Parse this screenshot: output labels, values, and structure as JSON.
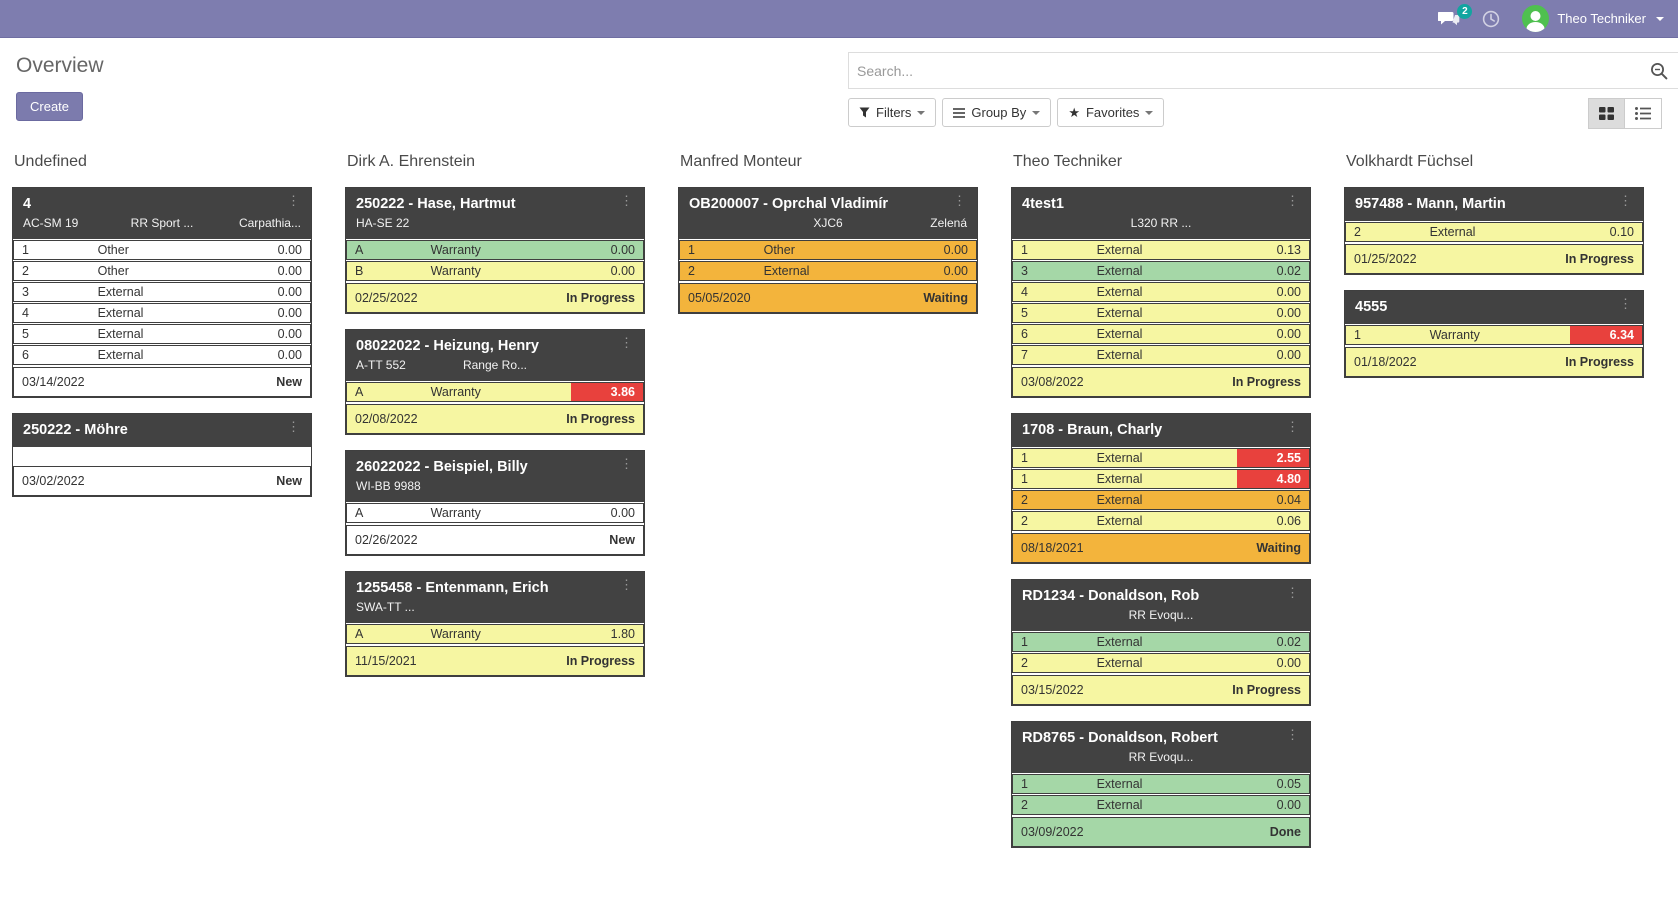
{
  "topbar": {
    "messages_badge": "2",
    "user_name": "Theo Techniker"
  },
  "header": {
    "title": "Overview",
    "create_label": "Create",
    "search_placeholder": "Search...",
    "filters_label": "Filters",
    "groupby_label": "Group By",
    "favorites_label": "Favorites"
  },
  "colors": {
    "accent": "#7C7BAD",
    "badge_teal": "#12A5A0",
    "card_header": "#424242",
    "white": "#FFFFFF",
    "yellow": "#F6F6A2",
    "green": "#A5D7A7",
    "orange": "#F3B43C",
    "red": "#E8413D"
  },
  "board": {
    "columns": [
      {
        "name": "Undefined",
        "cards": [
          {
            "title": "4",
            "subtitle": {
              "left": "AC-SM 19",
              "center": "RR Sport ...",
              "right": "Carpathia..."
            },
            "rows": [
              {
                "seq": "1",
                "type": "Other",
                "value": "0.00",
                "bg": "white"
              },
              {
                "seq": "2",
                "type": "Other",
                "value": "0.00",
                "bg": "white"
              },
              {
                "seq": "3",
                "type": "External",
                "value": "0.00",
                "bg": "white"
              },
              {
                "seq": "4",
                "type": "External",
                "value": "0.00",
                "bg": "white"
              },
              {
                "seq": "5",
                "type": "External",
                "value": "0.00",
                "bg": "white"
              },
              {
                "seq": "6",
                "type": "External",
                "value": "0.00",
                "bg": "white"
              }
            ],
            "footer": {
              "date": "03/14/2022",
              "status": "New",
              "bg": "white"
            }
          },
          {
            "title": "250222 - Möhre",
            "rows": [],
            "footer": {
              "date": "03/02/2022",
              "status": "New",
              "bg": "white"
            }
          }
        ]
      },
      {
        "name": "Dirk A. Ehrenstein",
        "cards": [
          {
            "title": "250222 - Hase, Hartmut",
            "subtitle": {
              "left": "HA-SE 22",
              "center": "",
              "right": ""
            },
            "rows": [
              {
                "seq": "A",
                "type": "Warranty",
                "value": "0.00",
                "bg": "green"
              },
              {
                "seq": "B",
                "type": "Warranty",
                "value": "0.00",
                "bg": "yellow"
              }
            ],
            "footer": {
              "date": "02/25/2022",
              "status": "In Progress",
              "bg": "yellow"
            }
          },
          {
            "title": "08022022 - Heizung, Henry",
            "subtitle": {
              "left": "A-TT 552",
              "center": "Range Ro...",
              "right": ""
            },
            "rows": [
              {
                "seq": "A",
                "type": "Warranty",
                "value": "3.86",
                "bg": "yellow",
                "badge": true
              }
            ],
            "footer": {
              "date": "02/08/2022",
              "status": "In Progress",
              "bg": "yellow"
            }
          },
          {
            "title": "26022022 - Beispiel, Billy",
            "subtitle": {
              "left": "WI-BB 9988",
              "center": "",
              "right": ""
            },
            "rows": [
              {
                "seq": "A",
                "type": "Warranty",
                "value": "0.00",
                "bg": "white"
              }
            ],
            "footer": {
              "date": "02/26/2022",
              "status": "New",
              "bg": "white"
            }
          },
          {
            "title": "1255458 - Entenmann, Erich",
            "subtitle": {
              "left": "SWA-TT ...",
              "center": "",
              "right": ""
            },
            "rows": [
              {
                "seq": "A",
                "type": "Warranty",
                "value": "1.80",
                "bg": "yellow"
              }
            ],
            "footer": {
              "date": "11/15/2021",
              "status": "In Progress",
              "bg": "yellow"
            }
          }
        ]
      },
      {
        "name": "Manfred Monteur",
        "cards": [
          {
            "title": "OB200007 - Oprchal Vladimír",
            "subtitle": {
              "left": "",
              "center": "XJC6",
              "right": "Zelená"
            },
            "rows": [
              {
                "seq": "1",
                "type": "Other",
                "value": "0.00",
                "bg": "orange"
              },
              {
                "seq": "2",
                "type": "External",
                "value": "0.00",
                "bg": "orange"
              }
            ],
            "footer": {
              "date": "05/05/2020",
              "status": "Waiting",
              "bg": "orange"
            }
          }
        ]
      },
      {
        "name": "Theo Techniker",
        "cards": [
          {
            "title": "4test1",
            "subtitle": {
              "left": "",
              "center": "L320 RR ...",
              "right": ""
            },
            "rows": [
              {
                "seq": "1",
                "type": "External",
                "value": "0.13",
                "bg": "yellow"
              },
              {
                "seq": "3",
                "type": "External",
                "value": "0.02",
                "bg": "green"
              },
              {
                "seq": "4",
                "type": "External",
                "value": "0.00",
                "bg": "yellow"
              },
              {
                "seq": "5",
                "type": "External",
                "value": "0.00",
                "bg": "yellow"
              },
              {
                "seq": "6",
                "type": "External",
                "value": "0.00",
                "bg": "yellow"
              },
              {
                "seq": "7",
                "type": "External",
                "value": "0.00",
                "bg": "yellow"
              }
            ],
            "footer": {
              "date": "03/08/2022",
              "status": "In Progress",
              "bg": "yellow"
            }
          },
          {
            "title": "1708 - Braun, Charly",
            "rows": [
              {
                "seq": "1",
                "type": "External",
                "value": "2.55",
                "bg": "yellow",
                "badge": true
              },
              {
                "seq": "1",
                "type": "External",
                "value": "4.80",
                "bg": "yellow",
                "badge": true
              },
              {
                "seq": "2",
                "type": "External",
                "value": "0.04",
                "bg": "orange"
              },
              {
                "seq": "2",
                "type": "External",
                "value": "0.06",
                "bg": "yellow"
              }
            ],
            "footer": {
              "date": "08/18/2021",
              "status": "Waiting",
              "bg": "orange"
            }
          },
          {
            "title": "RD1234 - Donaldson, Rob",
            "subtitle": {
              "left": "",
              "center": "RR Evoqu...",
              "right": ""
            },
            "rows": [
              {
                "seq": "1",
                "type": "External",
                "value": "0.02",
                "bg": "green"
              },
              {
                "seq": "2",
                "type": "External",
                "value": "0.00",
                "bg": "yellow"
              }
            ],
            "footer": {
              "date": "03/15/2022",
              "status": "In Progress",
              "bg": "yellow"
            }
          },
          {
            "title": "RD8765 - Donaldson, Robert",
            "subtitle": {
              "left": "",
              "center": "RR Evoqu...",
              "right": ""
            },
            "rows": [
              {
                "seq": "1",
                "type": "External",
                "value": "0.05",
                "bg": "green"
              },
              {
                "seq": "2",
                "type": "External",
                "value": "0.00",
                "bg": "green"
              }
            ],
            "footer": {
              "date": "03/09/2022",
              "status": "Done",
              "bg": "green"
            }
          }
        ]
      },
      {
        "name": "Volkhardt Füchsel",
        "cards": [
          {
            "title": "957488 - Mann, Martin",
            "rows": [
              {
                "seq": "2",
                "type": "External",
                "value": "0.10",
                "bg": "yellow"
              }
            ],
            "footer": {
              "date": "01/25/2022",
              "status": "In Progress",
              "bg": "yellow"
            }
          },
          {
            "title": "4555",
            "rows": [
              {
                "seq": "1",
                "type": "Warranty",
                "value": "6.34",
                "bg": "yellow",
                "badge": true
              }
            ],
            "footer": {
              "date": "01/18/2022",
              "status": "In Progress",
              "bg": "yellow"
            }
          }
        ]
      }
    ]
  }
}
